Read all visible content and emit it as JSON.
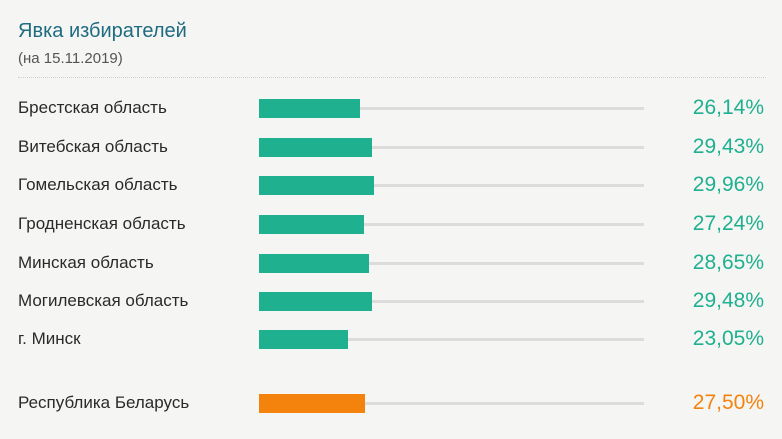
{
  "header": {
    "title": "Явка избирателей",
    "subtitle": "(на 15.11.2019)"
  },
  "colors": {
    "regions": "#1fb08f",
    "total": "#f4830d"
  },
  "chart_data": {
    "type": "bar",
    "orientation": "horizontal",
    "title": "Явка избирателей",
    "subtitle": "(на 15.11.2019)",
    "xlim": [
      0,
      100
    ],
    "categories": [
      "Брестская область",
      "Витебская область",
      "Гомельская область",
      "Гродненская область",
      "Минская область",
      "Могилевская область",
      "г. Минск",
      "Республика Беларусь"
    ],
    "values": [
      26.14,
      29.43,
      29.96,
      27.24,
      28.65,
      29.48,
      23.05,
      27.5
    ],
    "value_labels": [
      "26,14%",
      "29,43%",
      "29,96%",
      "27,24%",
      "28,65%",
      "29,48%",
      "23,05%",
      "27,50%"
    ],
    "highlight": [
      "Республика Беларусь"
    ]
  }
}
